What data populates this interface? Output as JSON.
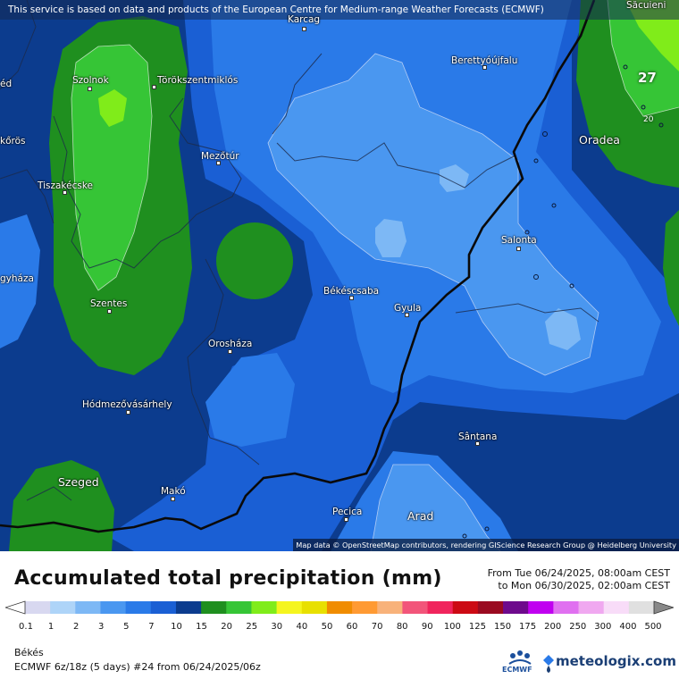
{
  "map": {
    "attribution_top": "This service is based on data and products of the European Centre for Medium-range Weather Forecasts (ECMWF)",
    "attribution_bottom": "Map data © OpenStreetMap contributors, rendering GIScience Research Group @ Heidelberg University",
    "cities": [
      {
        "name": "Karcag"
      },
      {
        "name": "Berettyóújfalu"
      },
      {
        "name": "Szolnok"
      },
      {
        "name": "Törökszentmiklós"
      },
      {
        "name": "Mezőtúr"
      },
      {
        "name": "Tiszakécske"
      },
      {
        "name": "Oradea"
      },
      {
        "name": "Salonta"
      },
      {
        "name": "Békéscsaba"
      },
      {
        "name": "Gyula"
      },
      {
        "name": "Szentes"
      },
      {
        "name": "Orosháza"
      },
      {
        "name": "Hódmezővásárhely"
      },
      {
        "name": "Sântana"
      },
      {
        "name": "Szeged"
      },
      {
        "name": "Makó"
      },
      {
        "name": "Pecica"
      },
      {
        "name": "Arad"
      },
      {
        "name": "Săcuieni"
      }
    ],
    "edge_labels": [
      "éd",
      "kőrös",
      "gyháza"
    ],
    "isoline_labels": [
      "27",
      "20"
    ]
  },
  "legend": {
    "title": "Accumulated total precipitation (mm)",
    "period_from": "From Tue 06/24/2025, 08:00am CEST",
    "period_to": "to Mon 06/30/2025, 02:00am CEST",
    "ticks": [
      "0.1",
      "1",
      "2",
      "3",
      "5",
      "7",
      "10",
      "15",
      "20",
      "25",
      "30",
      "40",
      "50",
      "60",
      "70",
      "80",
      "90",
      "100",
      "125",
      "150",
      "175",
      "200",
      "250",
      "300",
      "400",
      "500"
    ],
    "colors": [
      "#d8d8f0",
      "#aed4f8",
      "#7db8f5",
      "#4a97f0",
      "#2a7ae8",
      "#1a5fd4",
      "#0c3c8e",
      "#1f8f1f",
      "#36c536",
      "#80ec1a",
      "#f5f51e",
      "#e8e000",
      "#f08c00",
      "#ff9a33",
      "#f8b27a",
      "#f2557a",
      "#f0245c",
      "#cc0a14",
      "#9a0a20",
      "#6e0a8c",
      "#c000f0",
      "#e070f0",
      "#f0a8f0",
      "#f8dcf8",
      "#e0e0e0"
    ],
    "region": "Békés",
    "model": "ECMWF 6z/18z (5 days) #24 from  06/24/2025/06z",
    "ecmwf_label": "ECMWF",
    "brand": "meteologix.com"
  }
}
